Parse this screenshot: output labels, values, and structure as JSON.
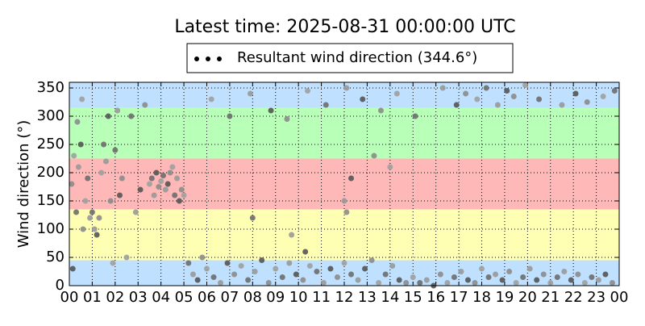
{
  "chart_data": {
    "type": "scatter",
    "title": "Latest time: 2025-08-31 00:00:00 UTC",
    "ylabel": "Wind direction (°)",
    "xlim": [
      0,
      24
    ],
    "ylim": [
      0,
      360
    ],
    "xticks": [
      {
        "value": 0,
        "label": "00"
      },
      {
        "value": 1,
        "label": "01"
      },
      {
        "value": 2,
        "label": "02"
      },
      {
        "value": 3,
        "label": "03"
      },
      {
        "value": 4,
        "label": "04"
      },
      {
        "value": 5,
        "label": "05"
      },
      {
        "value": 6,
        "label": "06"
      },
      {
        "value": 7,
        "label": "07"
      },
      {
        "value": 8,
        "label": "08"
      },
      {
        "value": 9,
        "label": "09"
      },
      10,
      11,
      12,
      13,
      14,
      15,
      16,
      17,
      18,
      19,
      20,
      21,
      22,
      23,
      {
        "value": 24,
        "label": "00"
      }
    ],
    "yticks": [
      0,
      50,
      100,
      150,
      200,
      250,
      300,
      350
    ],
    "grid": true,
    "bands": [
      {
        "from": 0,
        "to": 45,
        "color": "#bfe1ff"
      },
      {
        "from": 45,
        "to": 135,
        "color": "#ffffb3"
      },
      {
        "from": 135,
        "to": 225,
        "color": "#ffb8b8"
      },
      {
        "from": 225,
        "to": 315,
        "color": "#b8ffb8"
      },
      {
        "from": 315,
        "to": 360,
        "color": "#bfe1ff"
      }
    ],
    "legend": "top",
    "x": [
      0.1,
      0.2,
      0.3,
      0.4,
      0.5,
      0.6,
      0.7,
      0.8,
      0.9,
      0.15,
      0.35,
      0.55,
      1.0,
      1.1,
      1.2,
      1.3,
      1.4,
      1.5,
      1.6,
      1.7,
      1.8,
      1.9,
      2.0,
      2.1,
      2.2,
      2.3,
      2.5,
      2.7,
      2.9,
      3.1,
      3.3,
      3.5,
      3.6,
      3.7,
      3.8,
      3.9,
      4.0,
      4.1,
      4.2,
      4.3,
      4.4,
      4.5,
      4.6,
      4.7,
      4.8,
      4.9,
      5.0,
      5.2,
      5.4,
      5.6,
      5.8,
      6.0,
      6.3,
      6.6,
      6.9,
      7.2,
      7.5,
      7.8,
      8.1,
      8.4,
      8.7,
      9.0,
      9.3,
      9.6,
      9.9,
      10.2,
      10.5,
      10.8,
      11.1,
      11.4,
      11.7,
      12.0,
      12.3,
      12.6,
      12.9,
      13.2,
      13.5,
      13.8,
      14.1,
      14.4,
      14.7,
      15.0,
      15.3,
      15.6,
      15.9,
      16.2,
      16.5,
      16.8,
      17.1,
      17.4,
      17.7,
      18.0,
      18.3,
      18.6,
      18.9,
      19.2,
      19.5,
      19.8,
      20.1,
      20.4,
      20.7,
      21.0,
      21.3,
      21.6,
      21.9,
      22.2,
      22.5,
      22.8,
      23.1,
      23.4,
      23.7,
      6.2,
      7.0,
      7.9,
      8.8,
      9.5,
      10.4,
      11.2,
      12.1,
      12.8,
      13.6,
      14.3,
      15.1,
      16.3,
      16.9,
      17.3,
      17.8,
      18.2,
      18.7,
      19.1,
      19.4,
      19.9,
      20.5,
      21.5,
      22.1,
      22.6,
      23.3,
      23.8,
      12.0,
      12.3,
      13.3,
      14.0,
      8.0,
      9.7,
      10.3,
      12.1
    ],
    "series": [
      {
        "name": "Resultant wind direction (344.6°)",
        "color": "#8c8c8c",
        "values": [
          180,
          230,
          130,
          210,
          250,
          100,
          150,
          190,
          120,
          30,
          290,
          330,
          130,
          100,
          90,
          120,
          200,
          250,
          220,
          300,
          150,
          40,
          240,
          310,
          160,
          190,
          50,
          300,
          130,
          170,
          320,
          180,
          190,
          160,
          200,
          175,
          185,
          195,
          170,
          180,
          200,
          210,
          160,
          190,
          150,
          170,
          160,
          40,
          20,
          10,
          50,
          30,
          15,
          5,
          40,
          20,
          35,
          10,
          25,
          45,
          5,
          30,
          15,
          40,
          20,
          10,
          35,
          25,
          5,
          30,
          15,
          40,
          20,
          10,
          30,
          45,
          5,
          20,
          35,
          10,
          5,
          15,
          5,
          10,
          0,
          20,
          5,
          15,
          25,
          10,
          5,
          30,
          15,
          20,
          10,
          25,
          5,
          15,
          30,
          10,
          20,
          5,
          15,
          25,
          10,
          20,
          5,
          15,
          10,
          20,
          5,
          330,
          300,
          340,
          310,
          295,
          345,
          320,
          350,
          330,
          310,
          340,
          300,
          350,
          320,
          340,
          330,
          350,
          320,
          345,
          335,
          355,
          330,
          320,
          340,
          325,
          335,
          345,
          150,
          190,
          230,
          210,
          120,
          90,
          60,
          130
        ]
      }
    ]
  }
}
